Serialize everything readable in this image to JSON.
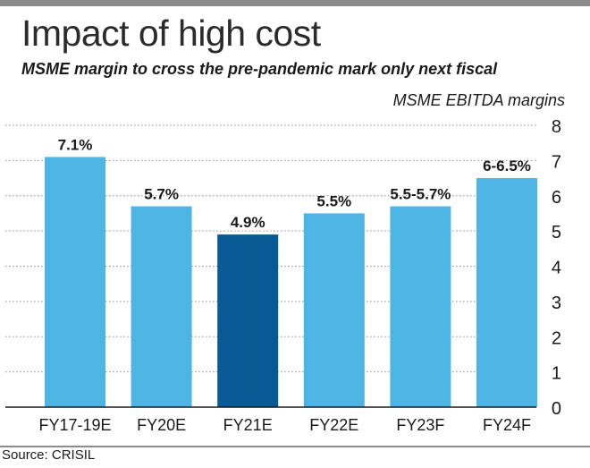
{
  "header": {
    "title": "Impact of high cost",
    "subtitle": "MSME margin to cross the pre-pandemic mark only next fiscal"
  },
  "footer": {
    "source": "Source: CRISIL"
  },
  "colors": {
    "bar": "#4db4e4",
    "highlight": "#075a93",
    "grid": "#8f8f8f",
    "axis": "#1a1a1a",
    "top_bar": "#8a8a8a"
  },
  "chart_data": {
    "type": "bar",
    "title": "",
    "xlabel": "",
    "ylabel": "MSME EBITDA margins",
    "ylim": [
      0,
      8
    ],
    "yticks": [
      0,
      1,
      2,
      3,
      4,
      5,
      6,
      7,
      8
    ],
    "y_axis_side": "right",
    "grid": true,
    "categories": [
      "FY17-19E",
      "FY20E",
      "FY21E",
      "FY22E",
      "FY23F",
      "FY24F"
    ],
    "values": [
      7.1,
      5.7,
      4.9,
      5.5,
      5.7,
      6.5
    ],
    "data_labels": [
      "7.1%",
      "5.7%",
      "4.9%",
      "5.5%",
      "5.5-5.7%",
      "6-6.5%"
    ],
    "highlighted_category": "FY21E"
  }
}
